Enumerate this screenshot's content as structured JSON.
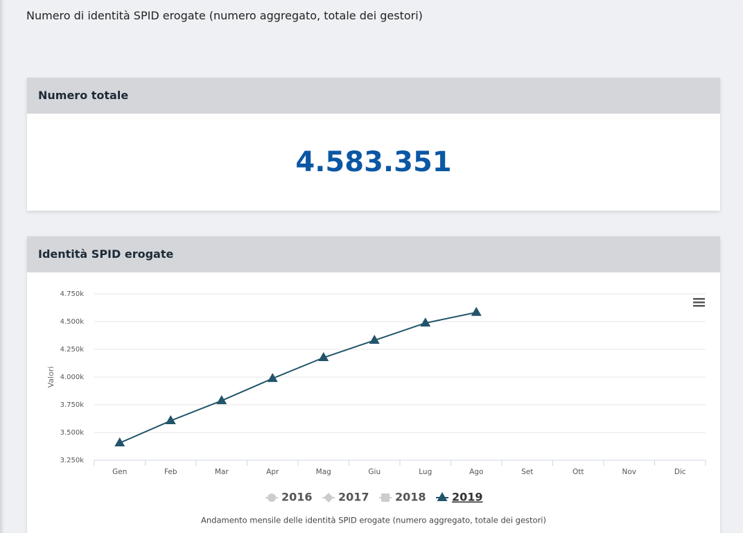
{
  "page_title": "Numero di identità SPID erogate (numero aggregato, totale dei gestori)",
  "total_card": {
    "title": "Numero totale",
    "value": "4.583.351"
  },
  "chart_card": {
    "title": "Identità SPID erogate"
  },
  "chart_data": {
    "type": "line",
    "ylabel": "Valori",
    "caption": "Andamento mensile delle identità SPID erogate (numero aggregato, totale dei gestori)",
    "categories": [
      "Gen",
      "Feb",
      "Mar",
      "Apr",
      "Mag",
      "Giu",
      "Lug",
      "Ago",
      "Set",
      "Ott",
      "Nov",
      "Dic"
    ],
    "ylim": [
      3250,
      4750
    ],
    "yticks": [
      {
        "value": 3250,
        "label": "3.250k"
      },
      {
        "value": 3500,
        "label": "3.500k"
      },
      {
        "value": 3750,
        "label": "3.750k"
      },
      {
        "value": 4000,
        "label": "4.000k"
      },
      {
        "value": 4250,
        "label": "4.250k"
      },
      {
        "value": 4500,
        "label": "4.500k"
      },
      {
        "value": 4750,
        "label": "4.750k"
      }
    ],
    "grid": true,
    "series": [
      {
        "name": "2016",
        "color": "#cccccc",
        "marker": "circle",
        "hidden": true,
        "values": [
          null,
          null,
          null,
          null,
          null,
          null,
          null,
          null,
          null,
          null,
          null,
          null
        ]
      },
      {
        "name": "2017",
        "color": "#cccccc",
        "marker": "diamond",
        "hidden": true,
        "values": [
          null,
          null,
          null,
          null,
          null,
          null,
          null,
          null,
          null,
          null,
          null,
          null
        ]
      },
      {
        "name": "2018",
        "color": "#cccccc",
        "marker": "square",
        "hidden": true,
        "values": [
          null,
          null,
          null,
          null,
          null,
          null,
          null,
          null,
          null,
          null,
          null,
          null
        ]
      },
      {
        "name": "2019",
        "color": "#22546a",
        "marker": "triangle",
        "hidden": false,
        "values": [
          3406,
          3606,
          3787,
          3987,
          4175,
          4331,
          4487,
          4583,
          null,
          null,
          null,
          null
        ]
      }
    ]
  }
}
